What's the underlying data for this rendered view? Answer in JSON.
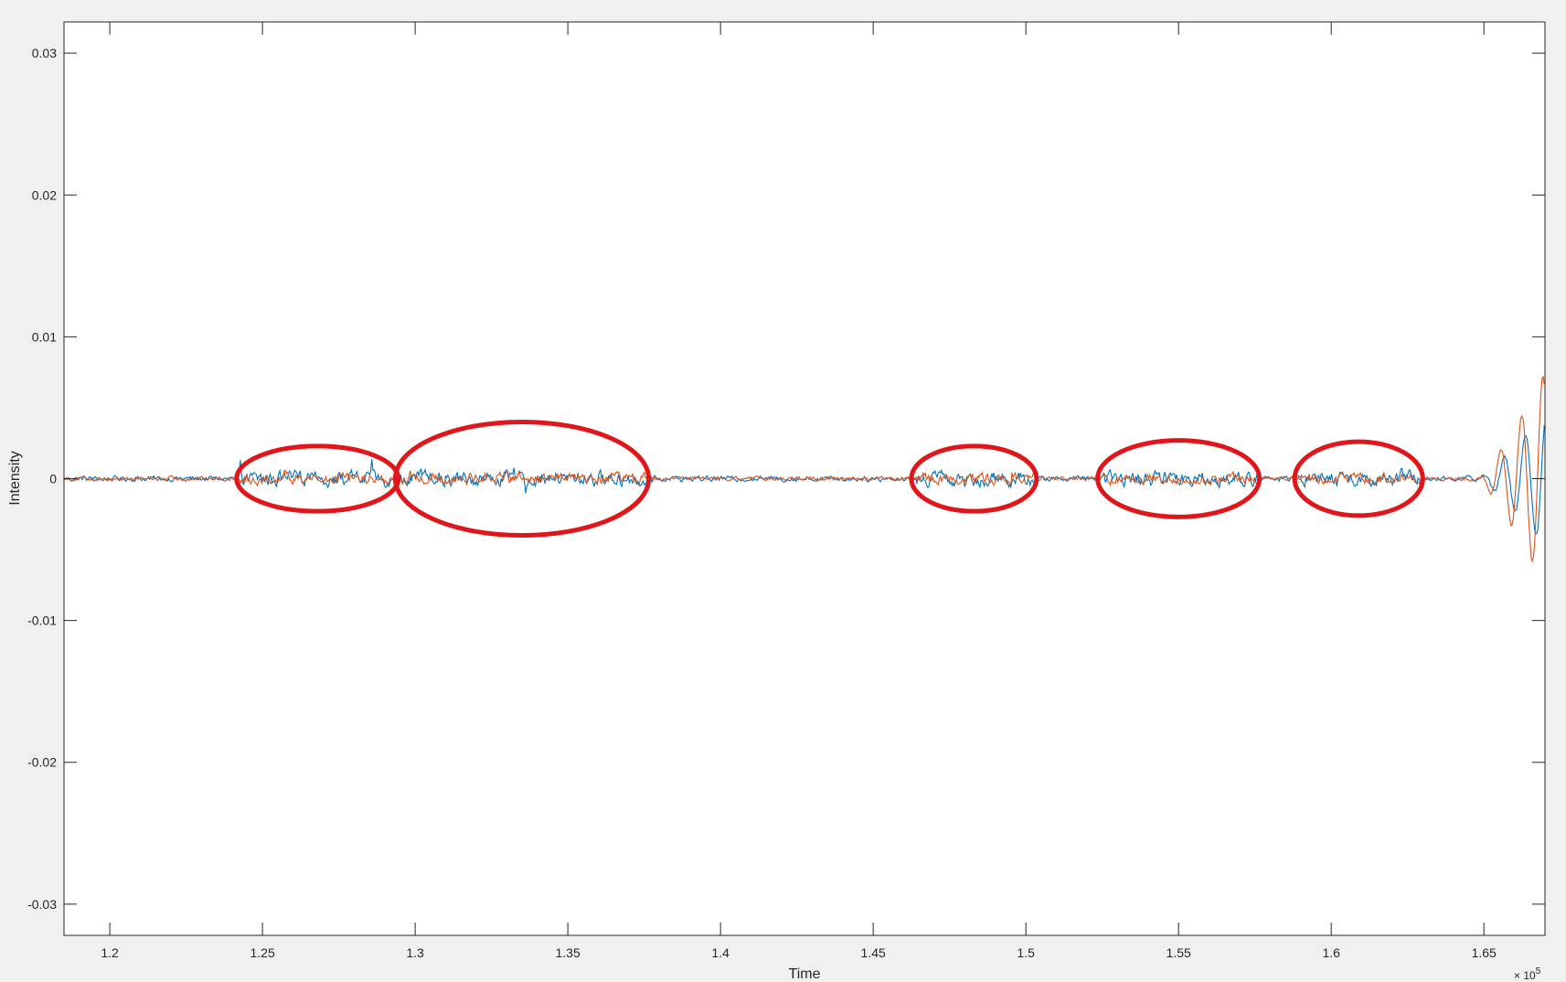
{
  "chart_data": {
    "type": "line",
    "title": "",
    "xlabel": "Time",
    "ylabel": "Intensity",
    "x_exponent_base": "× 10",
    "x_exponent_power": "5",
    "xlim": [
      118500,
      167000
    ],
    "ylim": [
      -0.0322,
      0.0322
    ],
    "x_ticks": [
      120000,
      125000,
      130000,
      135000,
      140000,
      145000,
      150000,
      155000,
      160000,
      165000
    ],
    "x_tick_labels": [
      "1.2",
      "1.25",
      "1.3",
      "1.35",
      "1.4",
      "1.45",
      "1.5",
      "1.55",
      "1.6",
      "1.65"
    ],
    "y_ticks": [
      0.03,
      0.02,
      0.01,
      0,
      -0.01,
      -0.02,
      -0.03
    ],
    "y_tick_labels": [
      "0.03",
      "0.02",
      "0.01",
      "0",
      "-0.01",
      "-0.02",
      "-0.03"
    ],
    "grid": false,
    "series": [
      {
        "color": "#0072BD",
        "noise_amplitude": 0.00015,
        "active_amplitude": 0.0004,
        "end_oscillation_amplitude": 0.0047
      },
      {
        "color": "#D95319",
        "noise_amplitude": 0.00012,
        "active_amplitude": 0.0003,
        "end_oscillation_amplitude": 0.0075
      }
    ],
    "active_regions": [
      {
        "start": 124200,
        "end": 129200
      },
      {
        "start": 129500,
        "end": 137900
      },
      {
        "start": 146400,
        "end": 150400
      },
      {
        "start": 152500,
        "end": 157700
      },
      {
        "start": 159000,
        "end": 163000
      }
    ],
    "annotations": {
      "type": "ellipse",
      "color": "#E0161B",
      "ellipses": [
        {
          "cx": 126800,
          "cy": 0,
          "rx": 2650,
          "ry": 0.0023
        },
        {
          "cx": 133500,
          "cy": 0,
          "rx": 4150,
          "ry": 0.004
        },
        {
          "cx": 148300,
          "cy": 0,
          "rx": 2050,
          "ry": 0.0023
        },
        {
          "cx": 155000,
          "cy": 0,
          "rx": 2650,
          "ry": 0.0027
        },
        {
          "cx": 160900,
          "cy": 0,
          "rx": 2100,
          "ry": 0.0026
        }
      ]
    }
  }
}
